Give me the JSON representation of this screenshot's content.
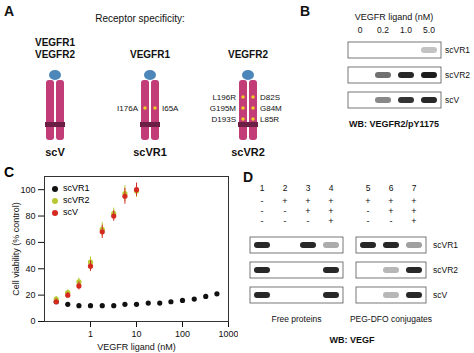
{
  "panels": {
    "A": {
      "label": "A",
      "title": "Receptor specificity:",
      "constructs": [
        {
          "name": "scV",
          "receptors": [
            "VEGFR1",
            "VEGFR2"
          ],
          "mutations_left": [],
          "mutations_right": []
        },
        {
          "name": "scVR1",
          "receptors": [
            "VEGFR1"
          ],
          "mutations_left": [
            "I176A"
          ],
          "mutations_right": [
            "I65A"
          ]
        },
        {
          "name": "scVR2",
          "receptors": [
            "VEGFR2"
          ],
          "mutations_left": [
            "L196R",
            "G195M",
            "D193S"
          ],
          "mutations_right": [
            "D82S",
            "G84M",
            "L85R"
          ]
        }
      ]
    },
    "B": {
      "label": "B",
      "title": "VEGFR ligand (nM)",
      "lanes": [
        "0",
        "0.2",
        "1.0",
        "5.0"
      ],
      "rows": [
        {
          "name": "scVR1",
          "intensity": [
            0,
            0,
            0,
            0.25
          ]
        },
        {
          "name": "scVR2",
          "intensity": [
            0,
            0.6,
            0.9,
            0.95
          ]
        },
        {
          "name": "scV",
          "intensity": [
            0,
            0.5,
            0.85,
            0.9
          ]
        }
      ],
      "footer": "WB: VEGFR2/pY1175"
    },
    "D": {
      "label": "D",
      "lanes": [
        1,
        2,
        3,
        4,
        5,
        6,
        7
      ],
      "groups": [
        {
          "name": "Free proteins",
          "lanes": [
            1,
            2,
            3,
            4
          ]
        },
        {
          "name": "PEG-DFO conjugates",
          "lanes": [
            5,
            6,
            7
          ]
        }
      ],
      "conditions": [
        [
          "-",
          "+",
          "+",
          "+",
          "+",
          "+",
          "+"
        ],
        [
          "-",
          "-",
          "+",
          "+",
          "-",
          "+",
          "+"
        ],
        [
          "-",
          "-",
          "-",
          "+",
          "-",
          "-",
          "+"
        ]
      ],
      "rows": [
        {
          "name": "scVR1",
          "intensity": [
            0.9,
            0,
            0.9,
            0.35,
            0.9,
            0.9,
            0.4
          ]
        },
        {
          "name": "scVR2",
          "intensity": [
            0.9,
            0,
            0,
            0.9,
            0,
            0.3,
            0.9
          ]
        },
        {
          "name": "scV",
          "intensity": [
            0.9,
            0,
            0,
            0.9,
            0,
            0.3,
            0.9
          ]
        }
      ],
      "footer": "WB: VEGF"
    }
  },
  "chart_data": {
    "type": "scatter",
    "title": "C",
    "xlabel": "VEGFR ligand (nM)",
    "ylabel": "Cell viability (% control)",
    "log": "x",
    "xlim": [
      0.1,
      1000
    ],
    "xticks": [
      1,
      10,
      100,
      1000
    ],
    "ylim": [
      0,
      110
    ],
    "yticks": [
      0,
      20,
      40,
      60,
      80,
      100
    ],
    "legend": "top-left",
    "series": [
      {
        "name": "scVR1",
        "color": "#111111",
        "marker": "circle",
        "x": [
          0.18,
          0.32,
          0.56,
          1,
          1.8,
          3.2,
          5.6,
          10,
          18,
          32,
          56,
          100,
          180,
          320,
          560
        ],
        "values": [
          15,
          13,
          12,
          12,
          12,
          12,
          13,
          13,
          14,
          14,
          15,
          16,
          17,
          19,
          21
        ]
      },
      {
        "name": "scVR2",
        "color": "#b8c832",
        "marker": "circle",
        "x": [
          0.18,
          0.32,
          0.56,
          1,
          1.8,
          3.2,
          5.6,
          10
        ],
        "values": [
          17,
          22,
          30,
          45,
          70,
          82,
          97,
          99
        ],
        "errors": [
          2,
          2,
          3,
          4,
          5,
          4,
          6,
          5
        ]
      },
      {
        "name": "scV",
        "color": "#d42a20",
        "marker": "circle",
        "x": [
          0.18,
          0.32,
          0.56,
          1,
          1.8,
          3.2,
          5.6,
          10
        ],
        "values": [
          15,
          20,
          27,
          42,
          68,
          80,
          95,
          100
        ],
        "errors": [
          2,
          2,
          3,
          4,
          5,
          4,
          6,
          5
        ]
      }
    ]
  }
}
